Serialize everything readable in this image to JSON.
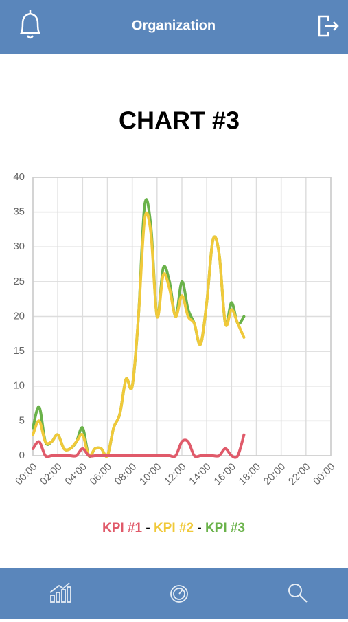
{
  "header": {
    "title": "Organization"
  },
  "chart_data": {
    "type": "line",
    "title": "CHART #3",
    "x": [
      0,
      0.5,
      1,
      1.5,
      2,
      2.5,
      3,
      3.5,
      4,
      4.5,
      5,
      5.5,
      6,
      6.5,
      7,
      7.5,
      8,
      8.5,
      9,
      9.5,
      10,
      10.5,
      11,
      11.5,
      12,
      12.5,
      13,
      13.5,
      14,
      14.5,
      15,
      15.5,
      16,
      16.5,
      17
    ],
    "series": [
      {
        "name": "KPI #1",
        "color": "#e05a6a",
        "values": [
          1,
          2,
          0,
          0,
          0,
          0,
          0,
          0,
          1,
          0,
          0,
          0,
          0,
          0,
          0,
          0,
          0,
          0,
          0,
          0,
          0,
          0,
          0,
          0,
          2,
          2,
          0,
          0,
          0,
          0,
          0,
          1,
          0,
          0,
          3
        ]
      },
      {
        "name": "KPI #2",
        "color": "#f0c93a",
        "values": [
          3,
          5,
          2,
          2,
          3,
          1,
          1,
          2,
          3,
          0,
          1,
          1,
          0,
          4,
          6,
          11,
          10,
          20,
          34,
          32,
          20,
          26,
          24,
          20,
          23,
          20,
          19,
          16,
          22,
          31,
          29,
          19,
          21,
          19,
          17
        ]
      },
      {
        "name": "KPI #3",
        "color": "#6ab24a",
        "values": [
          4,
          7,
          2,
          2,
          3,
          1,
          1,
          2,
          4,
          0,
          1,
          1,
          0,
          4,
          6,
          11,
          10,
          20,
          36,
          33,
          20,
          27,
          25,
          20,
          25,
          21,
          19,
          16,
          22,
          31,
          29,
          19,
          22,
          19,
          20
        ]
      }
    ],
    "legend_separator": "-",
    "xlim": [
      0,
      24
    ],
    "xticks": [
      {
        "value": 0,
        "label": "00:00"
      },
      {
        "value": 2,
        "label": "02:00"
      },
      {
        "value": 4,
        "label": "04:00"
      },
      {
        "value": 6,
        "label": "06:00"
      },
      {
        "value": 8,
        "label": "08:00"
      },
      {
        "value": 10,
        "label": "10:00"
      },
      {
        "value": 12,
        "label": "12:00"
      },
      {
        "value": 14,
        "label": "14:00"
      },
      {
        "value": 16,
        "label": "16:00"
      },
      {
        "value": 18,
        "label": "18:00"
      },
      {
        "value": 20,
        "label": "20:00"
      },
      {
        "value": 22,
        "label": "22:00"
      },
      {
        "value": 24,
        "label": "00:00"
      }
    ],
    "ylim": [
      0,
      40
    ],
    "yticks": [
      0,
      5,
      10,
      15,
      20,
      25,
      30,
      35,
      40
    ],
    "grid": true
  }
}
